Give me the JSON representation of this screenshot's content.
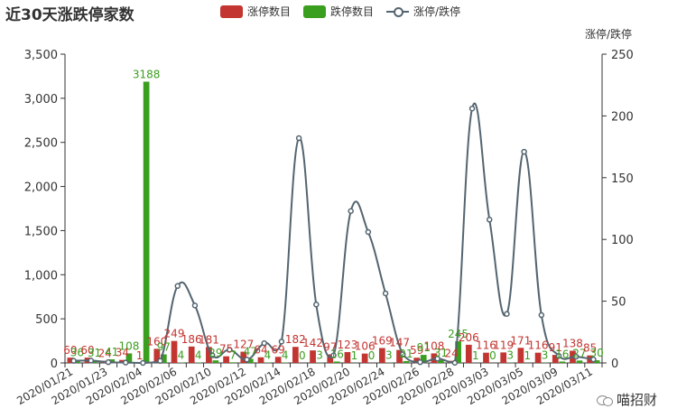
{
  "chart_data": {
    "type": "bar",
    "title": "近30天涨跌停家数",
    "y2label": "涨停/跌停",
    "ylim": [
      0,
      3500
    ],
    "y2lim": [
      0,
      250
    ],
    "yticks": [
      "0",
      "500",
      "1,000",
      "1,500",
      "2,000",
      "2,500",
      "3,000",
      "3,500"
    ],
    "y2ticks": [
      "0",
      "50",
      "100",
      "150",
      "200",
      "250"
    ],
    "x": [
      "2020/01/21",
      "2020/01/22",
      "2020/01/23",
      "2020/02/03",
      "2020/02/04",
      "2020/02/05",
      "2020/02/06",
      "2020/02/07",
      "2020/02/10",
      "2020/02/11",
      "2020/02/12",
      "2020/02/13",
      "2020/02/14",
      "2020/02/17",
      "2020/02/18",
      "2020/02/19",
      "2020/02/20",
      "2020/02/21",
      "2020/02/24",
      "2020/02/25",
      "2020/02/26",
      "2020/02/27",
      "2020/02/28",
      "2020/03/02",
      "2020/03/03",
      "2020/03/04",
      "2020/03/05",
      "2020/03/06",
      "2020/03/09",
      "2020/03/10",
      "2020/03/11"
    ],
    "xtick_labels": [
      "2020/01/21",
      "2020/01/23",
      "2020/02/04",
      "2020/02/06",
      "2020/02/10",
      "2020/02/12",
      "2020/02/14",
      "2020/02/18",
      "2020/02/20",
      "2020/02/24",
      "2020/02/26",
      "2020/02/28",
      "2020/03/03",
      "2020/03/05",
      "2020/03/09",
      "2020/03/11"
    ],
    "series": [
      {
        "name": "涨停数目",
        "type": "bar",
        "color": "#c23531",
        "values": [
          60,
          60,
          24,
          34,
          1,
          160,
          249,
          186,
          181,
          75,
          127,
          64,
          69,
          182,
          142,
          97,
          123,
          106,
          169,
          147,
          59,
          108,
          24,
          206,
          116,
          119,
          171,
          116,
          91,
          138,
          85
        ]
      },
      {
        "name": "跌停数目",
        "type": "bar",
        "color": "#3a9e1e",
        "values": [
          36,
          31,
          41,
          108,
          3188,
          97,
          4,
          4,
          29,
          7,
          47,
          4,
          4,
          0,
          3,
          16,
          1,
          0,
          3,
          21,
          91,
          31,
          245,
          1,
          0,
          3,
          1,
          3,
          16,
          27,
          30
        ]
      },
      {
        "name": "涨停/跌停",
        "type": "line",
        "color": "#546570",
        "axis": "right",
        "values": [
          1.7,
          1.9,
          0.6,
          0.3,
          0.0,
          1.6,
          62.3,
          46.5,
          6.2,
          10.7,
          2.7,
          16.0,
          17.3,
          182.0,
          47.3,
          6.1,
          123.0,
          106.0,
          56.3,
          7.0,
          0.6,
          3.5,
          0.1,
          206.0,
          116.0,
          39.7,
          171.0,
          38.7,
          5.7,
          5.1,
          2.8
        ]
      }
    ],
    "grid": false,
    "legend_position": "top-center"
  },
  "watermark": {
    "text": "喵招财",
    "icon": "wechat-icon"
  }
}
